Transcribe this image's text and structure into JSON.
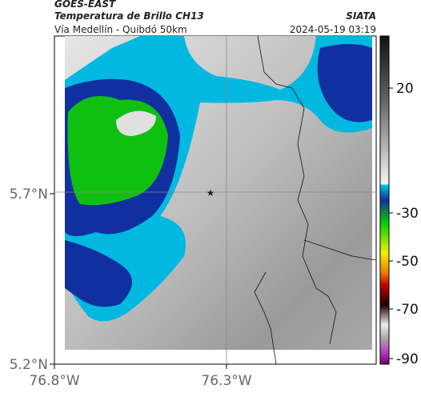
{
  "header": {
    "satellite": "GOES-EAST",
    "product": "Temperatura de Brillo CH13",
    "source": "SIATA",
    "route": "Vía Medellín - Quibdó 50km",
    "timestamp": "2024-05-19 03:19"
  },
  "axes": {
    "y_labels": [
      "5.7°N",
      "5.2°N"
    ],
    "x_labels": [
      "76.8°W",
      "76.3°W"
    ]
  },
  "colorbar": {
    "labels": [
      "20",
      "-30",
      "-50",
      "-70",
      "-90"
    ]
  }
}
